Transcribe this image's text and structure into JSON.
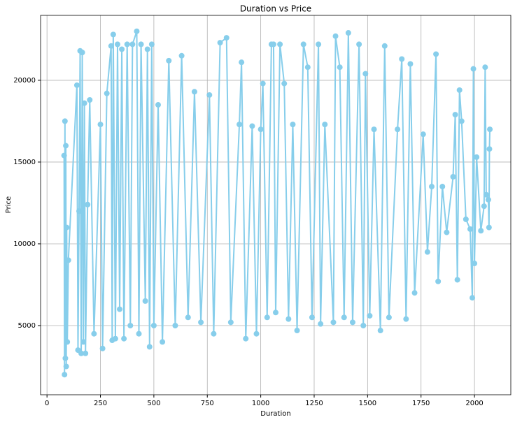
{
  "chart_data": {
    "type": "line",
    "title": "Duration vs Price",
    "xlabel": "Duration",
    "ylabel": "Price",
    "x": [
      80,
      82,
      84,
      86,
      88,
      90,
      92,
      95,
      100,
      140,
      145,
      150,
      155,
      160,
      165,
      170,
      175,
      180,
      190,
      200,
      220,
      250,
      260,
      280,
      300,
      305,
      310,
      320,
      330,
      340,
      350,
      360,
      375,
      390,
      400,
      420,
      430,
      440,
      460,
      470,
      480,
      490,
      500,
      520,
      540,
      570,
      600,
      630,
      660,
      690,
      720,
      760,
      780,
      810,
      840,
      860,
      900,
      910,
      930,
      960,
      980,
      1000,
      1010,
      1030,
      1050,
      1060,
      1070,
      1090,
      1110,
      1130,
      1150,
      1170,
      1200,
      1220,
      1240,
      1270,
      1280,
      1300,
      1340,
      1350,
      1370,
      1390,
      1410,
      1430,
      1460,
      1480,
      1490,
      1510,
      1530,
      1560,
      1580,
      1600,
      1640,
      1660,
      1680,
      1700,
      1720,
      1760,
      1780,
      1800,
      1820,
      1830,
      1850,
      1870,
      1900,
      1910,
      1920,
      1930,
      1940,
      1960,
      1980,
      1990,
      1995,
      2000,
      2010,
      2030,
      2045,
      2050,
      2055,
      2065,
      2068,
      2070,
      2072
    ],
    "series": [
      {
        "name": "Price",
        "color": "#87ceeb",
        "values": [
          15400,
          2000,
          17500,
          3000,
          16000,
          2500,
          11000,
          4000,
          9000,
          19700,
          3500,
          12000,
          21800,
          3300,
          21700,
          4000,
          18600,
          3300,
          12400,
          18800,
          4500,
          17300,
          3600,
          19200,
          22100,
          4100,
          22800,
          4200,
          22200,
          6000,
          21900,
          4200,
          22200,
          5000,
          22200,
          23000,
          4500,
          22200,
          6500,
          21900,
          3700,
          22200,
          5000,
          18500,
          4000,
          21200,
          5000,
          21500,
          5500,
          19300,
          5200,
          19100,
          4500,
          22300,
          22600,
          5200,
          17300,
          21100,
          4200,
          17200,
          4500,
          17000,
          19800,
          5500,
          22200,
          22200,
          5800,
          22200,
          19800,
          5400,
          17300,
          4700,
          22200,
          20800,
          5500,
          22200,
          5100,
          17300,
          5200,
          22700,
          20800,
          5500,
          22900,
          5200,
          22200,
          5000,
          20400,
          5600,
          17000,
          4700,
          22100,
          5500,
          17000,
          21300,
          5400,
          21000,
          7000,
          16700,
          9500,
          13500,
          21600,
          7700,
          13500,
          10700,
          14100,
          17900,
          7800,
          19400,
          17500,
          11500,
          10900,
          6700,
          20700,
          8800,
          15300,
          10800,
          12300,
          20800,
          13000,
          12700,
          11000,
          15800,
          17000
        ]
      }
    ],
    "xlim": [
      -30,
      2170
    ],
    "ylim": [
      770,
      23970
    ],
    "xticks": [
      0,
      250,
      500,
      750,
      1000,
      1250,
      1500,
      1750,
      2000
    ],
    "yticks": [
      5000,
      10000,
      15000,
      20000
    ],
    "grid": true
  }
}
